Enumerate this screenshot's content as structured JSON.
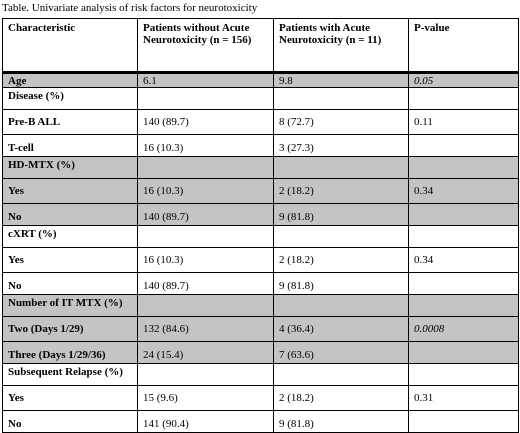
{
  "caption": "Table.  Univariate analysis of risk factors for neurotoxicity",
  "header": {
    "col1": "Characteristic",
    "col2": "Patients without Acute Neurotoxicity (n = 156)",
    "col3": "Patients with Acute Neurotoxicity (n = 11)",
    "col4": "P-value"
  },
  "age": {
    "label": "Age",
    "without": "6.1",
    "with": "9.8",
    "p": "0.05"
  },
  "groups": [
    {
      "title": "Disease (%)",
      "rows": [
        {
          "label": "Pre-B ALL",
          "without": "140 (89.7)",
          "with": "8 (72.7)",
          "p": "0.11"
        },
        {
          "label": "T-cell",
          "without": "16 (10.3)",
          "with": "3 (27.3)",
          "p": ""
        }
      ]
    },
    {
      "title": "HD-MTX (%)",
      "rows": [
        {
          "label": "Yes",
          "without": "16 (10.3)",
          "with": "2 (18.2)",
          "p": "0.34"
        },
        {
          "label": "No",
          "without": "140 (89.7)",
          "with": "9 (81.8)",
          "p": ""
        }
      ]
    },
    {
      "title": "cXRT (%)",
      "rows": [
        {
          "label": "Yes",
          "without": "16 (10.3)",
          "with": "2 (18.2)",
          "p": "0.34"
        },
        {
          "label": "No",
          "without": "140 (89.7)",
          "with": "9 (81.8)",
          "p": ""
        }
      ]
    },
    {
      "title": "Number of IT MTX (%)",
      "rows": [
        {
          "label": "Two (Days 1/29)",
          "without": "132 (84.6)",
          "with": "4 (36.4)",
          "p": "0.0008"
        },
        {
          "label": "Three (Days 1/29/36)",
          "without": "24 (15.4)",
          "with": "7 (63.6)",
          "p": ""
        }
      ]
    },
    {
      "title": "Subsequent Relapse (%)",
      "rows": [
        {
          "label": "Yes",
          "without": "15 (9.6)",
          "with": "2 (18.2)",
          "p": "0.31"
        },
        {
          "label": "No",
          "without": "141 (90.4)",
          "with": "9 (81.8)",
          "p": ""
        }
      ]
    }
  ],
  "colors": {
    "shade": "#c4c4c4"
  }
}
